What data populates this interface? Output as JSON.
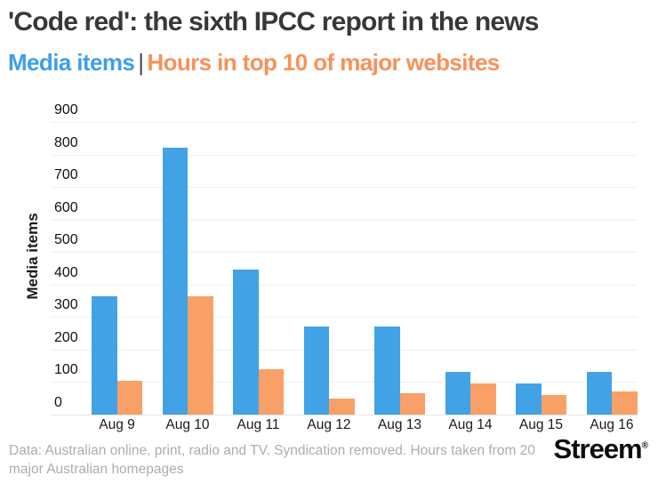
{
  "header": {
    "title": "'Code red': the sixth IPCC report in the news",
    "subtitle_left": "Media items",
    "subtitle_separator": "|",
    "subtitle_right": "Hours in top 10 of major websites"
  },
  "colors": {
    "media_items": "#42A2E6",
    "hours": "#F9A068",
    "subtitle_media_items": "#3D9FE8",
    "subtitle_hours": "#F89159",
    "title_text": "#383838",
    "grid": "#EFEFEF",
    "axis_text": "#111111",
    "footer_text": "#ADADAD",
    "logo_text": "#0E0E0E"
  },
  "chart_data": {
    "type": "bar",
    "categories": [
      "Aug 9",
      "Aug 10",
      "Aug 11",
      "Aug 12",
      "Aug 13",
      "Aug 14",
      "Aug 15",
      "Aug 16"
    ],
    "series": [
      {
        "name": "Media items",
        "color": "#42A2E6",
        "values": [
          365,
          820,
          445,
          270,
          270,
          130,
          95,
          130
        ]
      },
      {
        "name": "Hours in top 10 of major websites",
        "color": "#F9A068",
        "values": [
          105,
          365,
          140,
          50,
          65,
          95,
          60,
          70
        ]
      }
    ],
    "title": "'Code red': the sixth IPCC report in the news",
    "xlabel": "",
    "ylabel": "Media items",
    "ylim": [
      0,
      900
    ],
    "ytick_step": 100,
    "yticks": [
      "0",
      "100",
      "200",
      "300",
      "400",
      "500",
      "600",
      "700",
      "800",
      "900"
    ],
    "grid": true,
    "legend_position": "subtitle"
  },
  "footer": {
    "note_line1": "Data: Australian online, print, radio and TV. Syndication removed. Hours taken from 20",
    "note_line2": "major Australian homepages",
    "logo": "Streem",
    "logo_mark": "®"
  }
}
